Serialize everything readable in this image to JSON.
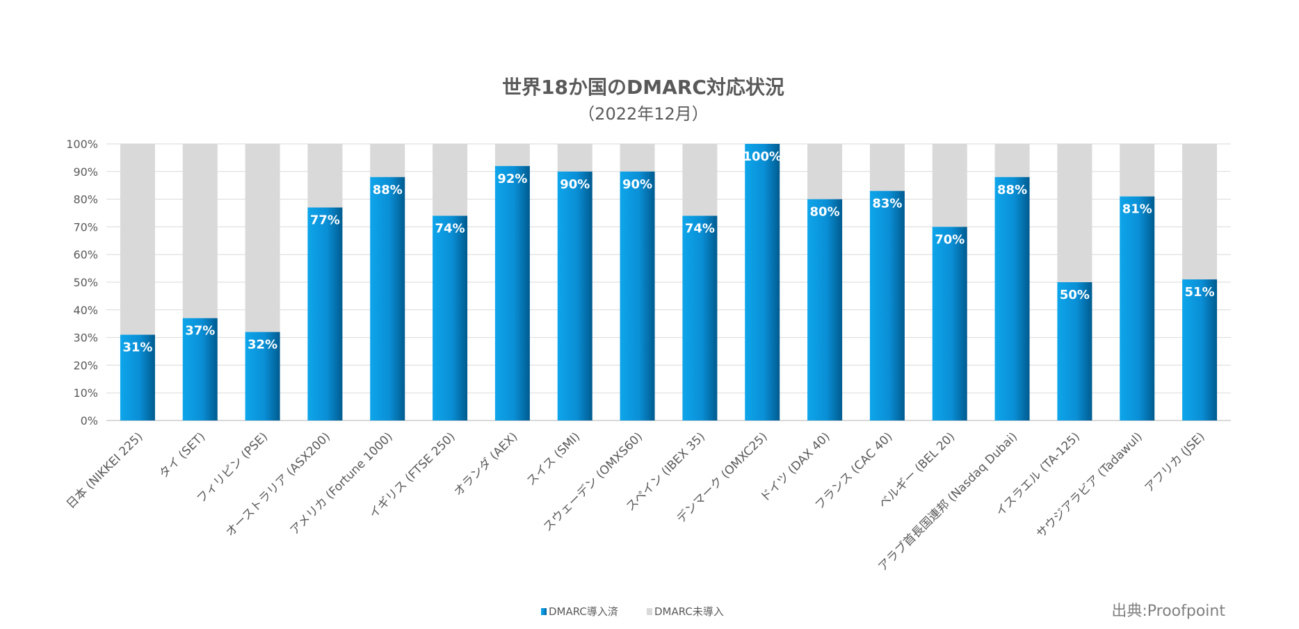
{
  "chart_data": {
    "type": "bar",
    "stacked": true,
    "percent_stacked": true,
    "title": "世界18か国のDMARC対応状況",
    "subtitle": "（2022年12月）",
    "categories": [
      "日本 (NIKKEI 225)",
      "タイ (SET)",
      "フィリピン (PSE)",
      "オーストラリア (ASX200)",
      "アメリカ (Fortune 1000)",
      "イギリス (FTSE 250)",
      "オランダ (AEX)",
      "スイス (SMI)",
      "スウェーデン (OMXS60)",
      "スペイン (IBEX 35)",
      "デンマーク (OMXC25)",
      "ドイツ (DAX 40)",
      "フランス (CAC 40)",
      "ベルギー (BEL 20)",
      "アラブ首長国連邦 (Nasdaq Dubai)",
      "イスラエル (TA-125)",
      "サウジアラビア (Tadawul)",
      "アフリカ (JSE)"
    ],
    "series": [
      {
        "name": "DMARC導入済",
        "color": "#0a8fd6",
        "values": [
          31,
          37,
          32,
          77,
          88,
          74,
          92,
          90,
          90,
          74,
          100,
          80,
          83,
          70,
          88,
          50,
          81,
          51
        ]
      },
      {
        "name": "DMARC未導入",
        "color": "#d9d9d9",
        "values": [
          69,
          63,
          68,
          23,
          12,
          26,
          8,
          10,
          10,
          26,
          0,
          20,
          17,
          30,
          12,
          50,
          19,
          49
        ]
      }
    ],
    "data_labels": [
      "31%",
      "37%",
      "32%",
      "77%",
      "88%",
      "74%",
      "92%",
      "90%",
      "90%",
      "74%",
      "100%",
      "80%",
      "83%",
      "70%",
      "88%",
      "50%",
      "81%",
      "51%"
    ],
    "yticks": [
      "0%",
      "10%",
      "20%",
      "30%",
      "40%",
      "50%",
      "60%",
      "70%",
      "80%",
      "90%",
      "100%"
    ],
    "ylim": [
      0,
      100
    ],
    "grid": true,
    "legend_position": "bottom",
    "source": "出典:Proofpoint"
  }
}
